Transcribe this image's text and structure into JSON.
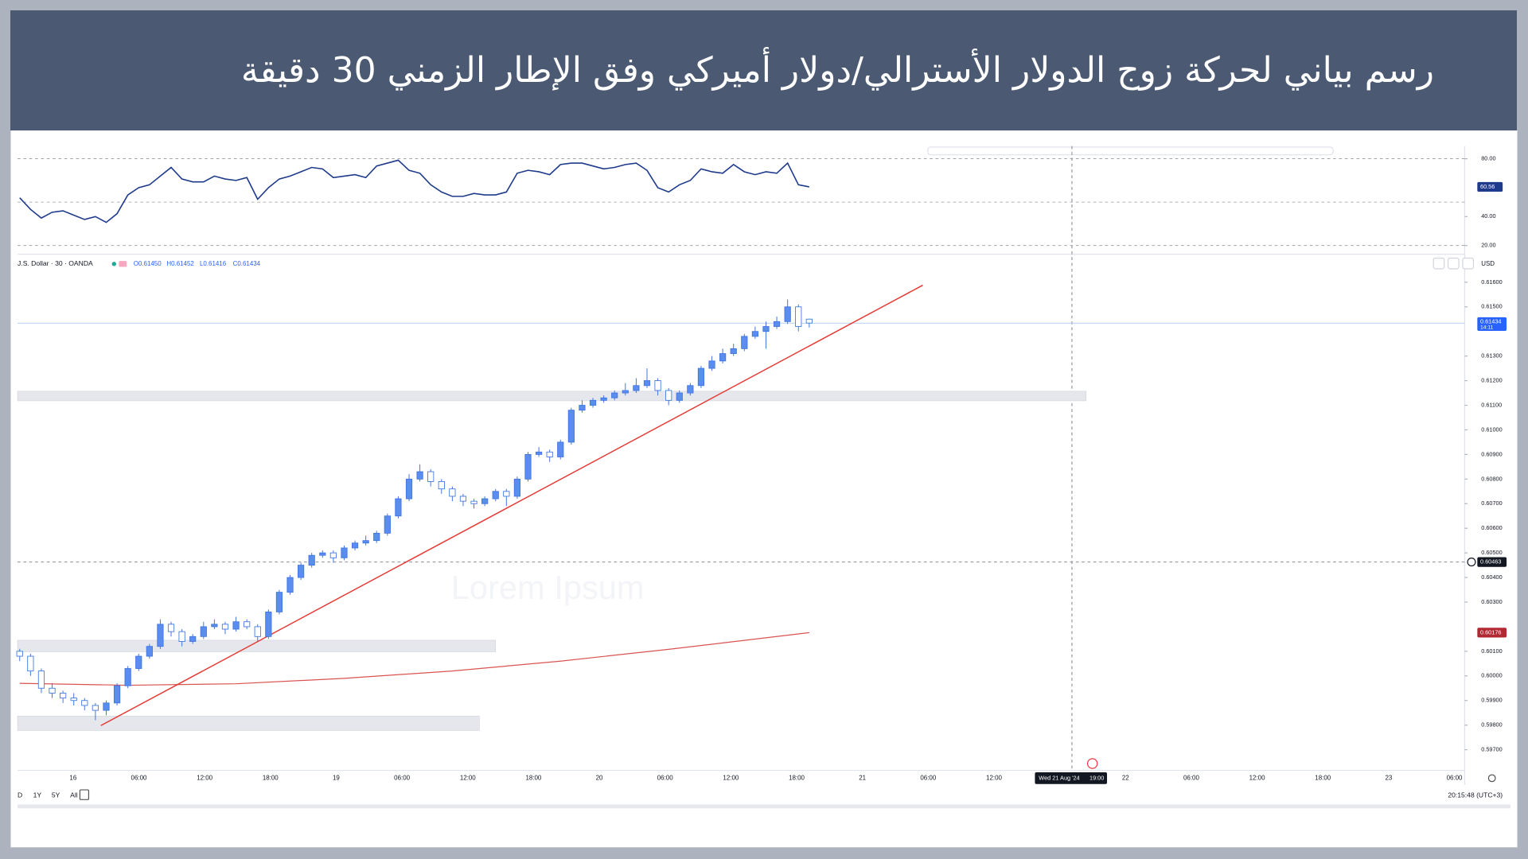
{
  "header": {
    "title": "رسم بياني لحركة زوج الدولار الأسترالي/دولار أميركي وفق الإطار الزمني 30 دقيقة"
  },
  "chart_data": {
    "type": "candlestick",
    "symbol": "J.S. Dollar · 30 · OANDA",
    "ohlc_legend": [
      "O0.61450",
      "H0.61452",
      "L0.61416",
      "C0.61434"
    ],
    "currency": "USD",
    "candles": [
      [
        0.601,
        0.6011,
        0.6006,
        0.6008
      ],
      [
        0.6008,
        0.6009,
        0.6,
        0.6002
      ],
      [
        0.6002,
        0.6003,
        0.5993,
        0.5995
      ],
      [
        0.5995,
        0.5997,
        0.5991,
        0.5993
      ],
      [
        0.5993,
        0.5994,
        0.5989,
        0.5991
      ],
      [
        0.5991,
        0.5993,
        0.5988,
        0.599
      ],
      [
        0.599,
        0.5991,
        0.5986,
        0.5988
      ],
      [
        0.5988,
        0.5989,
        0.5982,
        0.5986
      ],
      [
        0.5986,
        0.599,
        0.5984,
        0.5989
      ],
      [
        0.5989,
        0.5997,
        0.5988,
        0.5996
      ],
      [
        0.5996,
        0.6004,
        0.5995,
        0.6003
      ],
      [
        0.6003,
        0.6009,
        0.6002,
        0.6008
      ],
      [
        0.6008,
        0.6013,
        0.6007,
        0.6012
      ],
      [
        0.6012,
        0.6023,
        0.6011,
        0.6021
      ],
      [
        0.6021,
        0.6022,
        0.6016,
        0.6018
      ],
      [
        0.6018,
        0.6019,
        0.6012,
        0.6014
      ],
      [
        0.6014,
        0.6017,
        0.6013,
        0.6016
      ],
      [
        0.6016,
        0.6022,
        0.6015,
        0.602
      ],
      [
        0.602,
        0.6023,
        0.6019,
        0.6021
      ],
      [
        0.6021,
        0.6022,
        0.6017,
        0.6019
      ],
      [
        0.6019,
        0.6024,
        0.6018,
        0.6022
      ],
      [
        0.6022,
        0.6023,
        0.6019,
        0.602
      ],
      [
        0.602,
        0.6021,
        0.6014,
        0.6016
      ],
      [
        0.6016,
        0.6027,
        0.6015,
        0.6026
      ],
      [
        0.6026,
        0.6035,
        0.6025,
        0.6034
      ],
      [
        0.6034,
        0.6041,
        0.6033,
        0.604
      ],
      [
        0.604,
        0.6046,
        0.6039,
        0.6045
      ],
      [
        0.6045,
        0.605,
        0.6044,
        0.6049
      ],
      [
        0.6049,
        0.6051,
        0.6048,
        0.605
      ],
      [
        0.605,
        0.6051,
        0.6046,
        0.6048
      ],
      [
        0.6048,
        0.6053,
        0.6047,
        0.6052
      ],
      [
        0.6052,
        0.6055,
        0.6051,
        0.6054
      ],
      [
        0.6054,
        0.6057,
        0.6053,
        0.6055
      ],
      [
        0.6055,
        0.6059,
        0.6054,
        0.6058
      ],
      [
        0.6058,
        0.6066,
        0.6057,
        0.6065
      ],
      [
        0.6065,
        0.6073,
        0.6064,
        0.6072
      ],
      [
        0.6072,
        0.6082,
        0.6071,
        0.608
      ],
      [
        0.608,
        0.6086,
        0.6079,
        0.6083
      ],
      [
        0.6083,
        0.6084,
        0.6077,
        0.6079
      ],
      [
        0.6079,
        0.608,
        0.6074,
        0.6076
      ],
      [
        0.6076,
        0.6077,
        0.6071,
        0.6073
      ],
      [
        0.6073,
        0.6074,
        0.6069,
        0.6071
      ],
      [
        0.6071,
        0.6072,
        0.6068,
        0.607
      ],
      [
        0.607,
        0.6073,
        0.6069,
        0.6072
      ],
      [
        0.6072,
        0.6076,
        0.6071,
        0.6075
      ],
      [
        0.6075,
        0.6076,
        0.6069,
        0.6073
      ],
      [
        0.6073,
        0.6081,
        0.6072,
        0.608
      ],
      [
        0.608,
        0.6091,
        0.6079,
        0.609
      ],
      [
        0.609,
        0.6093,
        0.6089,
        0.6091
      ],
      [
        0.6091,
        0.6092,
        0.6087,
        0.6089
      ],
      [
        0.6089,
        0.6096,
        0.6088,
        0.6095
      ],
      [
        0.6095,
        0.6109,
        0.6094,
        0.6108
      ],
      [
        0.6108,
        0.6112,
        0.6107,
        0.611
      ],
      [
        0.611,
        0.6113,
        0.6109,
        0.6112
      ],
      [
        0.6112,
        0.6114,
        0.6111,
        0.6113
      ],
      [
        0.6113,
        0.6116,
        0.6112,
        0.6115
      ],
      [
        0.6115,
        0.6119,
        0.6114,
        0.6116
      ],
      [
        0.6116,
        0.6121,
        0.6115,
        0.6118
      ],
      [
        0.6118,
        0.6125,
        0.6117,
        0.612
      ],
      [
        0.612,
        0.6121,
        0.6114,
        0.6116
      ],
      [
        0.6116,
        0.6117,
        0.611,
        0.6112
      ],
      [
        0.6112,
        0.6116,
        0.6111,
        0.6115
      ],
      [
        0.6115,
        0.6119,
        0.6114,
        0.6118
      ],
      [
        0.6118,
        0.6126,
        0.6117,
        0.6125
      ],
      [
        0.6125,
        0.613,
        0.6124,
        0.6128
      ],
      [
        0.6128,
        0.6133,
        0.6127,
        0.6131
      ],
      [
        0.6131,
        0.6135,
        0.613,
        0.6133
      ],
      [
        0.6133,
        0.6139,
        0.6132,
        0.6138
      ],
      [
        0.6138,
        0.6142,
        0.6137,
        0.614
      ],
      [
        0.614,
        0.6144,
        0.6133,
        0.6142
      ],
      [
        0.6142,
        0.6146,
        0.6141,
        0.6144
      ],
      [
        0.6144,
        0.6153,
        0.6143,
        0.615
      ],
      [
        0.615,
        0.6151,
        0.614,
        0.6142
      ],
      [
        0.6145,
        0.61452,
        0.61416,
        0.61434
      ]
    ],
    "xlim": [
      -0.2,
      133.6
    ],
    "ylim": [
      0.5962,
      0.6171
    ],
    "yticks": [
      {
        "value": 0.616,
        "label": "0.61600"
      },
      {
        "value": 0.615,
        "label": "0.61500"
      },
      {
        "value": 0.613,
        "label": "0.61300"
      },
      {
        "value": 0.612,
        "label": "0.61200"
      },
      {
        "value": 0.611,
        "label": "0.61100"
      },
      {
        "value": 0.61,
        "label": "0.61000"
      },
      {
        "value": 0.609,
        "label": "0.60900"
      },
      {
        "value": 0.608,
        "label": "0.60800"
      },
      {
        "value": 0.607,
        "label": "0.60700"
      },
      {
        "value": 0.606,
        "label": "0.60600"
      },
      {
        "value": 0.605,
        "label": "0.60500"
      },
      {
        "value": 0.604,
        "label": "0.60400"
      },
      {
        "value": 0.603,
        "label": "0.60300"
      },
      {
        "value": 0.601,
        "label": "0.60100"
      },
      {
        "value": 0.6,
        "label": "0.60000"
      },
      {
        "value": 0.599,
        "label": "0.59900"
      },
      {
        "value": 0.598,
        "label": "0.59800"
      },
      {
        "value": 0.597,
        "label": "0.59700"
      }
    ],
    "last_price": 0.61434,
    "countdown": "14:11",
    "crosshair_price": 0.60463,
    "crosshair_time": "Wed 21 Aug '24",
    "crosshair_clock": "19:00",
    "ma": {
      "x": [
        0,
        10,
        20,
        30,
        40,
        50,
        60,
        73
      ],
      "values": [
        0.5997,
        0.59962,
        0.59968,
        0.5999,
        0.6002,
        0.6006,
        0.60108,
        0.60176
      ],
      "color": "#d9534f"
    },
    "trendline": {
      "x": [
        7.5,
        83.5
      ],
      "values": [
        0.59798,
        0.61588
      ],
      "color": "#e53935"
    },
    "zones": [
      {
        "x": [
          -0.2,
          98.6
        ],
        "values": [
          0.61118,
          0.61157
        ]
      },
      {
        "x": [
          -0.2,
          44
        ],
        "values": [
          0.60098,
          0.60145
        ]
      },
      {
        "x": [
          -0.2,
          42.5
        ],
        "values": [
          0.59778,
          0.59837
        ]
      }
    ],
    "time_labels": [
      "16",
      "06:00",
      "12:00",
      "18:00",
      "19",
      "06:00",
      "12:00",
      "18:00",
      "20",
      "06:00",
      "12:00",
      "18:00",
      "21",
      "06:00",
      "12:00",
      "22",
      "06:00",
      "12:00",
      "18:00",
      "23",
      "06:00"
    ],
    "rsi": {
      "values": [
        53,
        45,
        39,
        43,
        44,
        41,
        38,
        40,
        36,
        42,
        55,
        60,
        62,
        68,
        74,
        66,
        64,
        64,
        68,
        66,
        65,
        67,
        52,
        60,
        66,
        68,
        71,
        74,
        73,
        67,
        68,
        69,
        67,
        75,
        77,
        79,
        72,
        70,
        62,
        57,
        54,
        54,
        56,
        55,
        55,
        57,
        70,
        72,
        71,
        69,
        76,
        77,
        77,
        75,
        73,
        74,
        76,
        77,
        72,
        60,
        57,
        62,
        65,
        73,
        71,
        70,
        76,
        71,
        69,
        71,
        70,
        77,
        62,
        60.56
      ],
      "ylim": [
        16,
        85.4
      ],
      "levels": [
        80,
        50,
        20
      ],
      "yticks": [
        {
          "value": 80,
          "label": "80.00"
        },
        {
          "value": 40,
          "label": "40.00"
        },
        {
          "value": 20,
          "label": "20.00"
        }
      ],
      "color": "#1e3a8a"
    },
    "watermark": "Lorem Ipsum",
    "ranges": [
      "D",
      "1Y",
      "5Y",
      "All"
    ],
    "clock": "20:15:48 (UTC+3)"
  }
}
